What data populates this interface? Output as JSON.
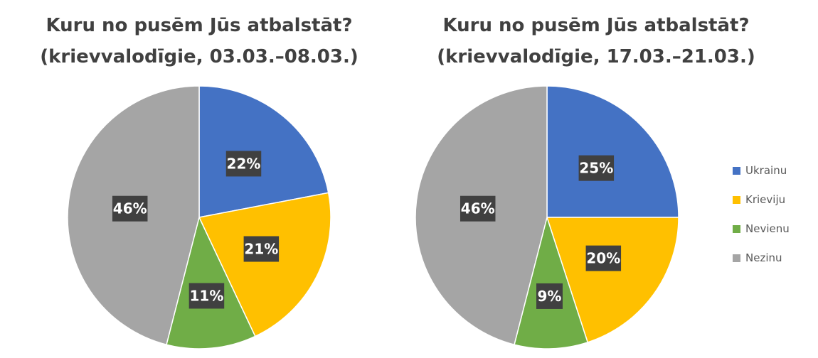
{
  "colors": {
    "Ukrainu": "#4472C4",
    "Krieviju": "#FFC000",
    "Nevienu": "#70AD47",
    "Nezinu": "#A5A5A5",
    "label_bg": "#404040",
    "label_text": "#FFFFFF"
  },
  "chart_data": [
    {
      "type": "pie",
      "title_line1": "Kuru no pusēm Jūs atbalstāt?",
      "title_line2": "(krievvalodīgie, 03.03.–08.03.)",
      "categories": [
        "Ukrainu",
        "Krieviju",
        "Nevienu",
        "Nezinu"
      ],
      "values": [
        22,
        21,
        11,
        46
      ],
      "labels": [
        "22%",
        "21%",
        "11%",
        "46%"
      ],
      "start_angle": "12 o'clock",
      "direction": "clockwise"
    },
    {
      "type": "pie",
      "title_line1": "Kuru no pusēm Jūs atbalstāt?",
      "title_line2": "(krievvalodīgie, 17.03.–21.03.)",
      "categories": [
        "Ukrainu",
        "Krieviju",
        "Nevienu",
        "Nezinu"
      ],
      "values": [
        25,
        20,
        9,
        46
      ],
      "labels": [
        "25%",
        "20%",
        "9%",
        "46%"
      ],
      "start_angle": "12 o'clock",
      "direction": "clockwise"
    }
  ],
  "legend": {
    "placement": "right",
    "items": [
      "Ukrainu",
      "Krieviju",
      "Nevienu",
      "Nezinu"
    ]
  }
}
